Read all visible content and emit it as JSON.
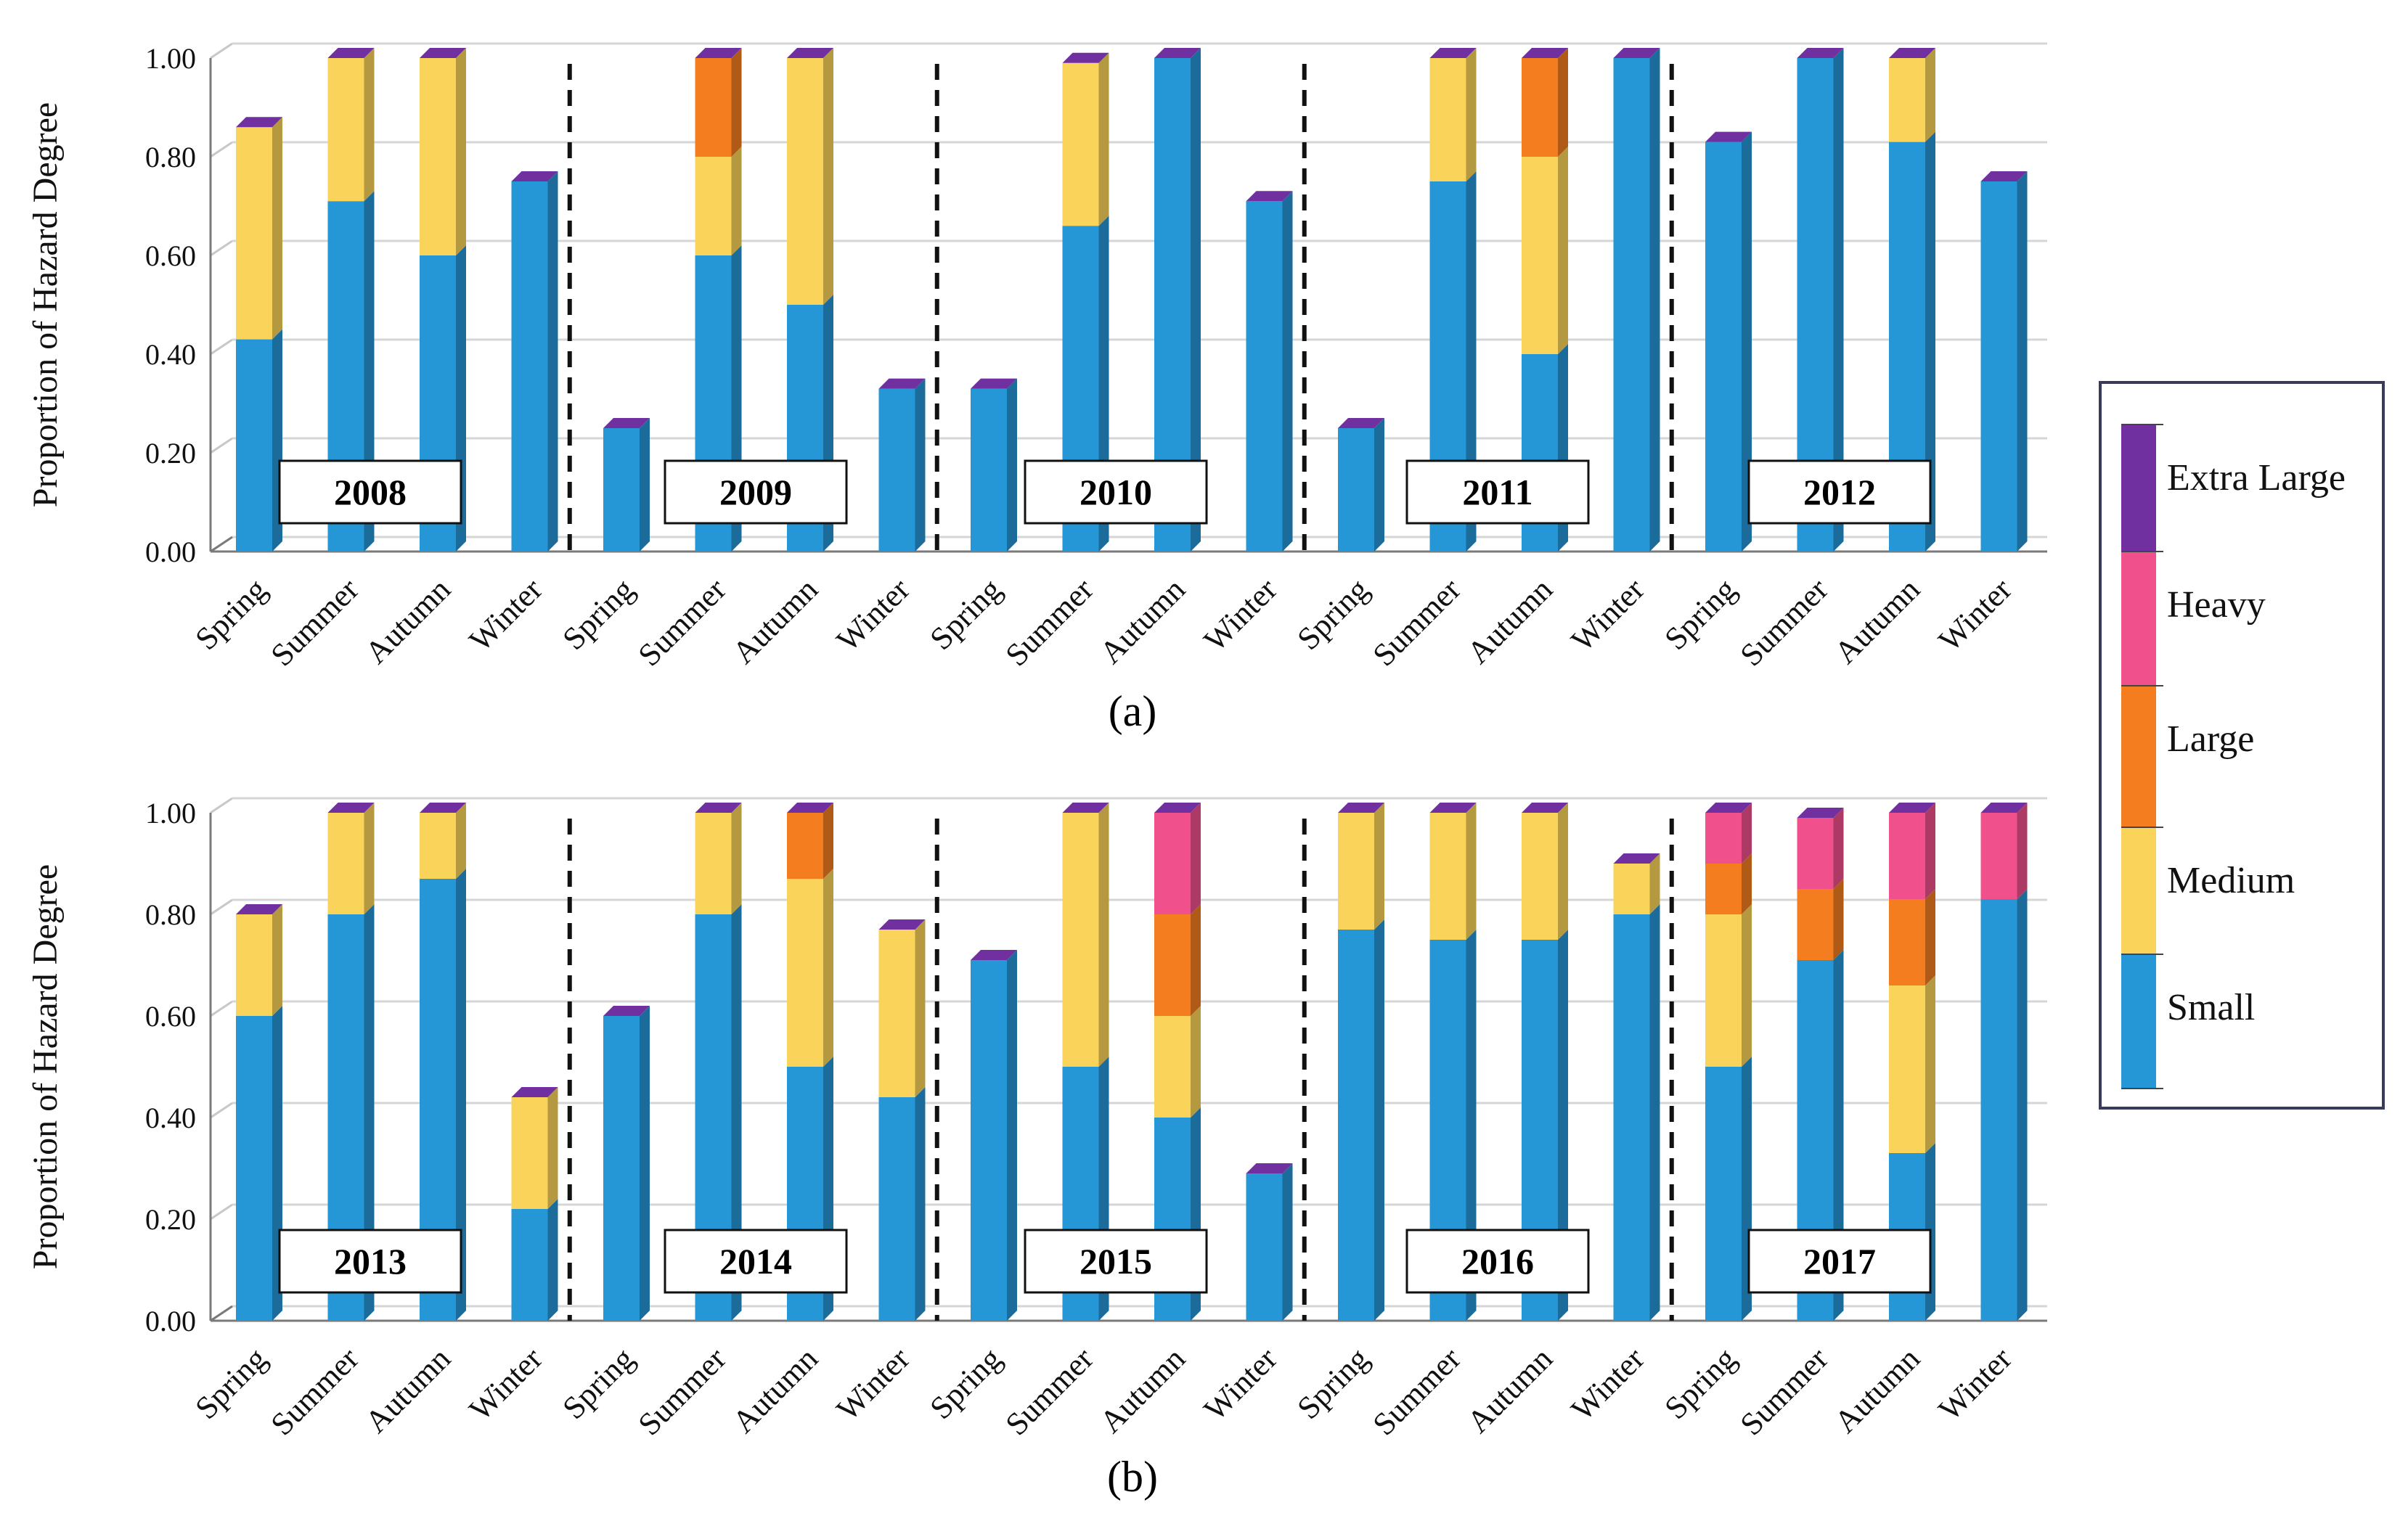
{
  "chart_data": {
    "type": "bar",
    "stacked": true,
    "ylabel": "Proportion of Hazard Degree",
    "ytick_labels": [
      "0.00",
      "0.20",
      "0.40",
      "0.60",
      "0.80",
      "1.00"
    ],
    "ylim": [
      0,
      1
    ],
    "legend": {
      "placement": "right",
      "entries": [
        {
          "name": "Extra Large",
          "color": "#7030A0"
        },
        {
          "name": "Heavy",
          "color": "#F0508C"
        },
        {
          "name": "Large",
          "color": "#F47D20"
        },
        {
          "name": "Medium",
          "color": "#FAD45A"
        },
        {
          "name": "Small",
          "color": "#2596D6"
        }
      ]
    },
    "series_order": [
      "Small",
      "Medium",
      "Large",
      "Heavy",
      "Extra Large"
    ],
    "panels": [
      {
        "panel_label": "(a)",
        "years": [
          {
            "year": "2008",
            "seasons": [
              {
                "season": "Spring",
                "Small": 0.43,
                "Medium": 0.43,
                "Large": 0,
                "Heavy": 0
              },
              {
                "season": "Summer",
                "Small": 0.71,
                "Medium": 0.29,
                "Large": 0,
                "Heavy": 0
              },
              {
                "season": "Autumn",
                "Small": 0.6,
                "Medium": 0.4,
                "Large": 0,
                "Heavy": 0
              },
              {
                "season": "Winter",
                "Small": 0.75,
                "Medium": 0,
                "Large": 0,
                "Heavy": 0
              }
            ]
          },
          {
            "year": "2009",
            "seasons": [
              {
                "season": "Spring",
                "Small": 0.25,
                "Medium": 0,
                "Large": 0,
                "Heavy": 0
              },
              {
                "season": "Summer",
                "Small": 0.6,
                "Medium": 0.2,
                "Large": 0.2,
                "Heavy": 0
              },
              {
                "season": "Autumn",
                "Small": 0.5,
                "Medium": 0.5,
                "Large": 0,
                "Heavy": 0
              },
              {
                "season": "Winter",
                "Small": 0.33,
                "Medium": 0,
                "Large": 0,
                "Heavy": 0
              }
            ]
          },
          {
            "year": "2010",
            "seasons": [
              {
                "season": "Spring",
                "Small": 0.33,
                "Medium": 0,
                "Large": 0,
                "Heavy": 0
              },
              {
                "season": "Summer",
                "Small": 0.66,
                "Medium": 0.33,
                "Large": 0,
                "Heavy": 0
              },
              {
                "season": "Autumn",
                "Small": 1.0,
                "Medium": 0,
                "Large": 0,
                "Heavy": 0
              },
              {
                "season": "Winter",
                "Small": 0.71,
                "Medium": 0,
                "Large": 0,
                "Heavy": 0
              }
            ]
          },
          {
            "year": "2011",
            "seasons": [
              {
                "season": "Spring",
                "Small": 0.25,
                "Medium": 0,
                "Large": 0,
                "Heavy": 0
              },
              {
                "season": "Summer",
                "Small": 0.75,
                "Medium": 0.25,
                "Large": 0,
                "Heavy": 0
              },
              {
                "season": "Autumn",
                "Small": 0.4,
                "Medium": 0.4,
                "Large": 0.2,
                "Heavy": 0
              },
              {
                "season": "Winter",
                "Small": 1.0,
                "Medium": 0,
                "Large": 0,
                "Heavy": 0
              }
            ]
          },
          {
            "year": "2012",
            "seasons": [
              {
                "season": "Spring",
                "Small": 0.83,
                "Medium": 0,
                "Large": 0,
                "Heavy": 0
              },
              {
                "season": "Summer",
                "Small": 1.0,
                "Medium": 0,
                "Large": 0,
                "Heavy": 0
              },
              {
                "season": "Autumn",
                "Small": 0.83,
                "Medium": 0.17,
                "Large": 0,
                "Heavy": 0
              },
              {
                "season": "Winter",
                "Small": 0.75,
                "Medium": 0,
                "Large": 0,
                "Heavy": 0
              }
            ]
          }
        ]
      },
      {
        "panel_label": "(b)",
        "years": [
          {
            "year": "2013",
            "seasons": [
              {
                "season": "Spring",
                "Small": 0.6,
                "Medium": 0.2,
                "Large": 0,
                "Heavy": 0
              },
              {
                "season": "Summer",
                "Small": 0.8,
                "Medium": 0.2,
                "Large": 0,
                "Heavy": 0
              },
              {
                "season": "Autumn",
                "Small": 0.87,
                "Medium": 0.13,
                "Large": 0,
                "Heavy": 0
              },
              {
                "season": "Winter",
                "Small": 0.22,
                "Medium": 0.22,
                "Large": 0,
                "Heavy": 0
              }
            ]
          },
          {
            "year": "2014",
            "seasons": [
              {
                "season": "Spring",
                "Small": 0.6,
                "Medium": 0,
                "Large": 0,
                "Heavy": 0
              },
              {
                "season": "Summer",
                "Small": 0.8,
                "Medium": 0.2,
                "Large": 0,
                "Heavy": 0
              },
              {
                "season": "Autumn",
                "Small": 0.5,
                "Medium": 0.37,
                "Large": 0.13,
                "Heavy": 0
              },
              {
                "season": "Winter",
                "Small": 0.44,
                "Medium": 0.33,
                "Large": 0,
                "Heavy": 0
              }
            ]
          },
          {
            "year": "2015",
            "seasons": [
              {
                "season": "Spring",
                "Small": 0.71,
                "Medium": 0,
                "Large": 0,
                "Heavy": 0
              },
              {
                "season": "Summer",
                "Small": 0.5,
                "Medium": 0.5,
                "Large": 0,
                "Heavy": 0
              },
              {
                "season": "Autumn",
                "Small": 0.4,
                "Medium": 0.2,
                "Large": 0.2,
                "Heavy": 0.2
              },
              {
                "season": "Winter",
                "Small": 0.29,
                "Medium": 0,
                "Large": 0,
                "Heavy": 0
              }
            ]
          },
          {
            "year": "2016",
            "seasons": [
              {
                "season": "Spring",
                "Small": 0.77,
                "Medium": 0.23,
                "Large": 0,
                "Heavy": 0
              },
              {
                "season": "Summer",
                "Small": 0.75,
                "Medium": 0.25,
                "Large": 0,
                "Heavy": 0
              },
              {
                "season": "Autumn",
                "Small": 0.75,
                "Medium": 0.25,
                "Large": 0,
                "Heavy": 0
              },
              {
                "season": "Winter",
                "Small": 0.8,
                "Medium": 0.1,
                "Large": 0,
                "Heavy": 0
              }
            ]
          },
          {
            "year": "2017",
            "seasons": [
              {
                "season": "Spring",
                "Small": 0.5,
                "Medium": 0.3,
                "Large": 0.1,
                "Heavy": 0.1
              },
              {
                "season": "Summer",
                "Small": 0.71,
                "Medium": 0,
                "Large": 0.14,
                "Heavy": 0.14
              },
              {
                "season": "Autumn",
                "Small": 0.33,
                "Medium": 0.33,
                "Large": 0.17,
                "Heavy": 0.17
              },
              {
                "season": "Winter",
                "Small": 0.83,
                "Medium": 0,
                "Large": 0,
                "Heavy": 0.17
              }
            ]
          }
        ]
      }
    ]
  }
}
